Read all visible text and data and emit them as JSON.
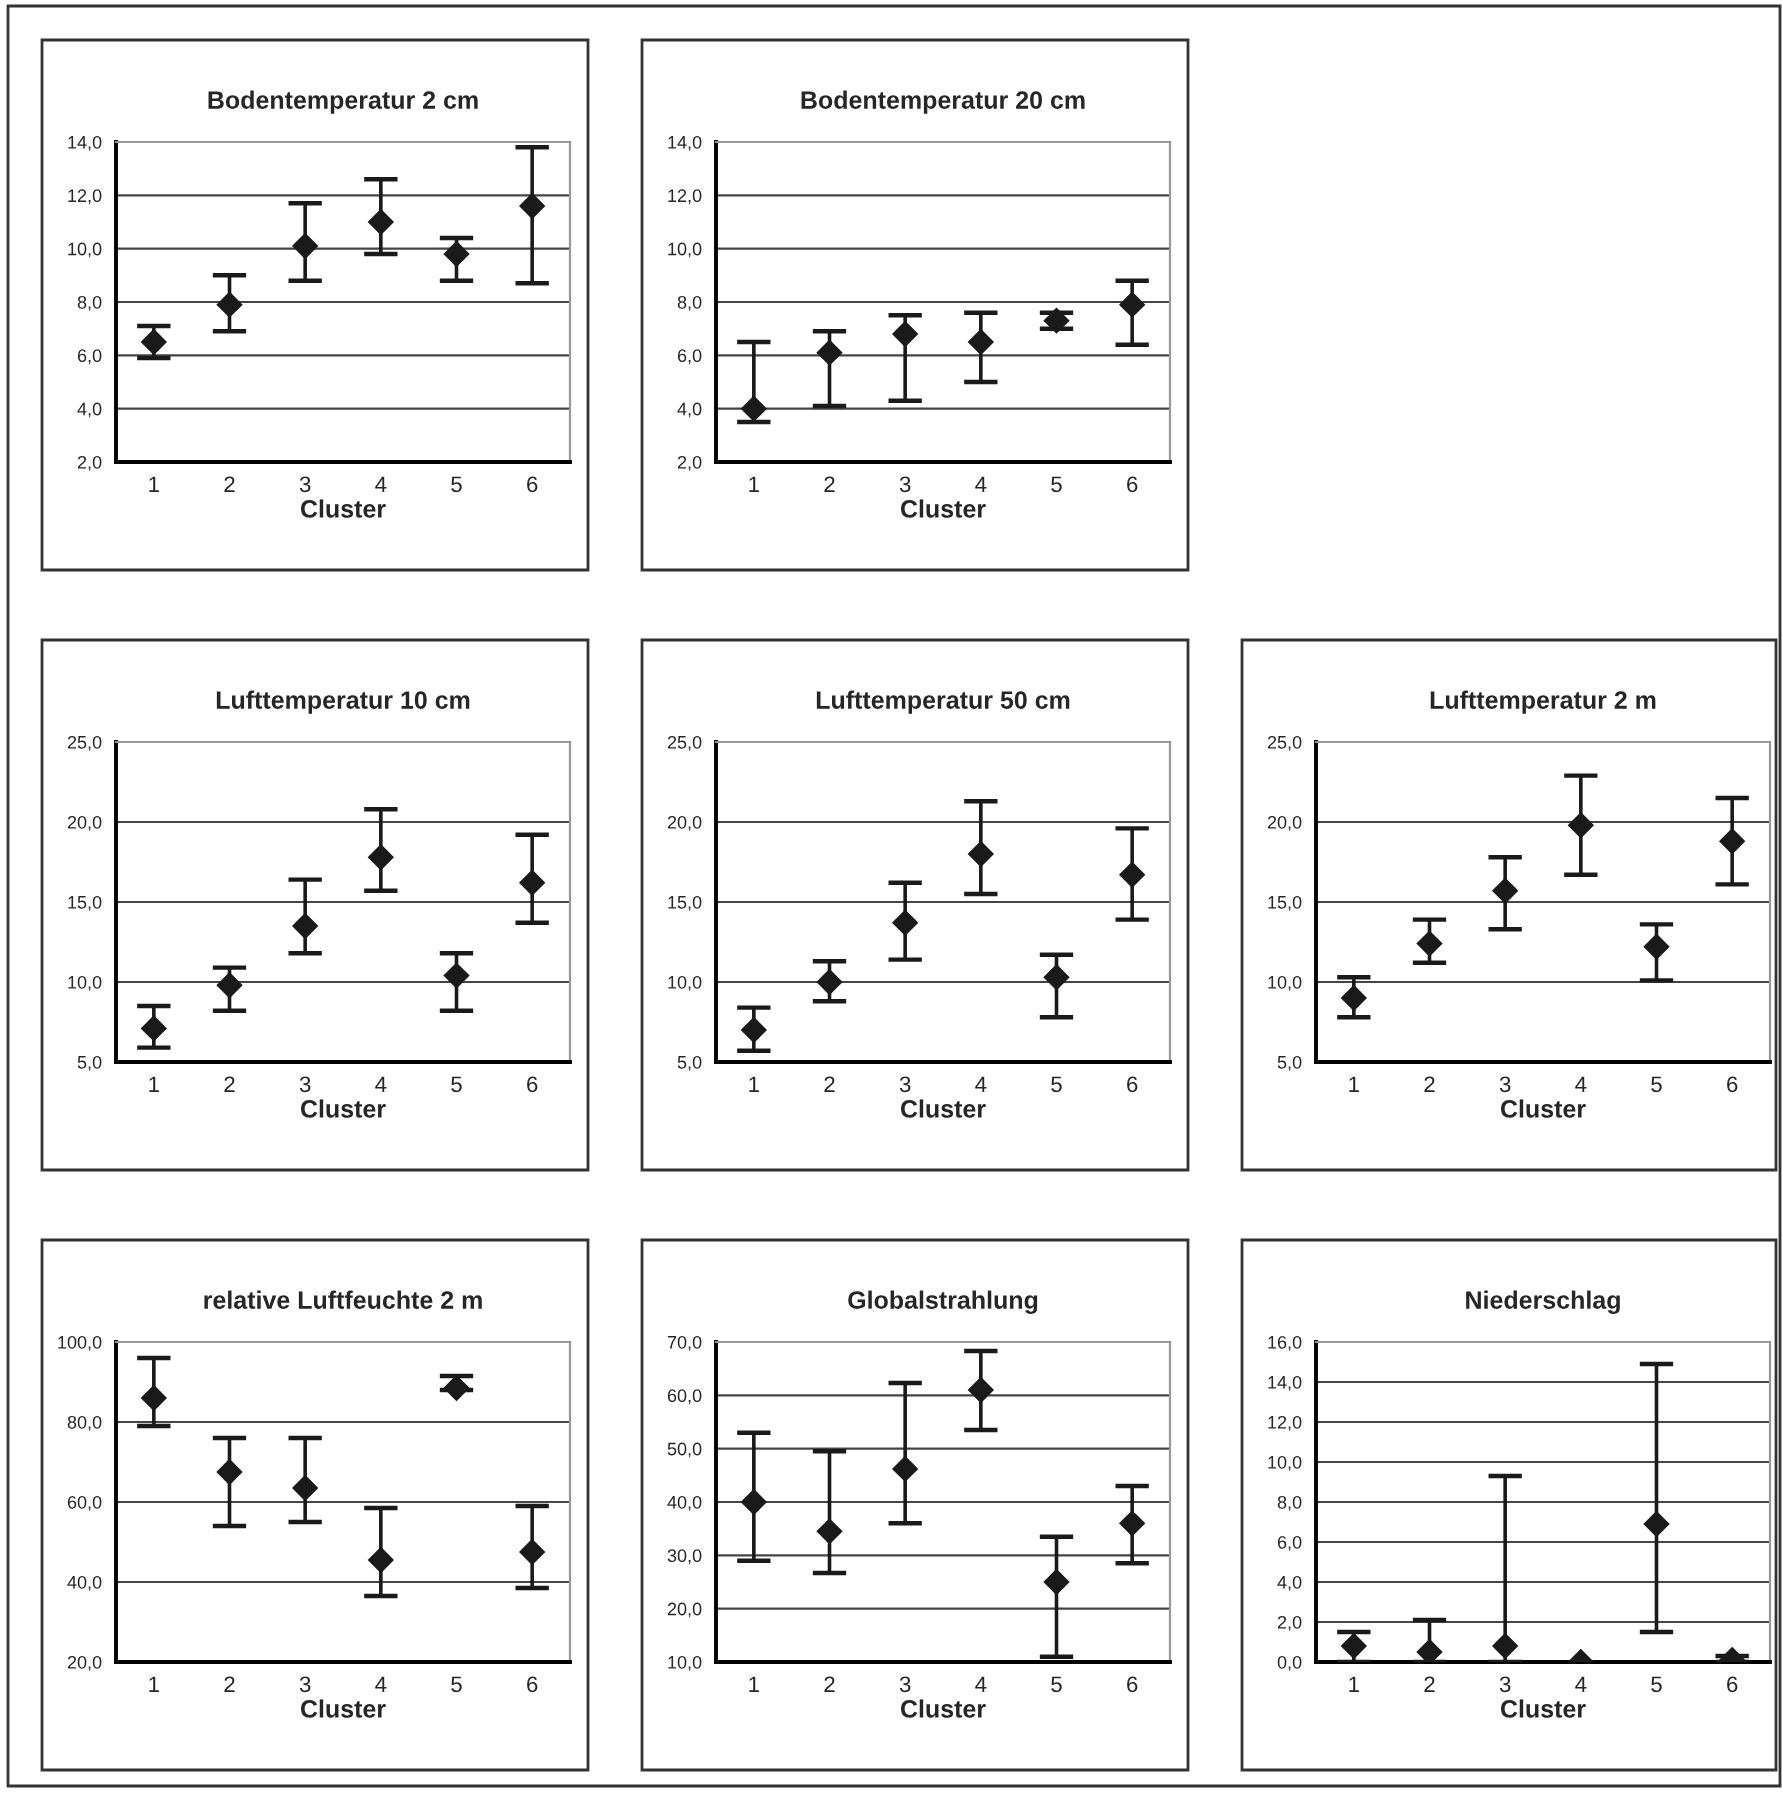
{
  "chart_data": [
    {
      "type": "scatter",
      "title": "Bodentemperatur 2 cm",
      "xlabel": "Cluster",
      "categories": [
        "1",
        "2",
        "3",
        "4",
        "5",
        "6"
      ],
      "color": "#1a1a1a",
      "marker": "diamond",
      "grid": "y",
      "values": [
        6.5,
        7.9,
        10.1,
        11.0,
        9.8,
        11.6
      ],
      "errors": [
        [
          5.9,
          7.1
        ],
        [
          6.9,
          9.0
        ],
        [
          8.8,
          11.7
        ],
        [
          9.8,
          12.6
        ],
        [
          8.8,
          10.4
        ],
        [
          8.7,
          13.8
        ]
      ],
      "ylim": [
        2,
        14
      ],
      "yticks": [
        {
          "value": 2,
          "label": "2,0"
        },
        {
          "value": 4,
          "label": "4,0"
        },
        {
          "value": 6,
          "label": "6,0"
        },
        {
          "value": 8,
          "label": "8,0"
        },
        {
          "value": 10,
          "label": "10,0"
        },
        {
          "value": 12,
          "label": "12,0"
        },
        {
          "value": 14,
          "label": "14,0"
        }
      ]
    },
    {
      "type": "scatter",
      "title": "Bodentemperatur 20 cm",
      "xlabel": "Cluster",
      "categories": [
        "1",
        "2",
        "3",
        "4",
        "5",
        "6"
      ],
      "color": "#1a1a1a",
      "marker": "diamond",
      "grid": "y",
      "values": [
        4.0,
        6.1,
        6.8,
        6.5,
        7.3,
        7.9
      ],
      "errors": [
        [
          3.5,
          6.5
        ],
        [
          4.1,
          6.9
        ],
        [
          4.3,
          7.5
        ],
        [
          5.0,
          7.6
        ],
        [
          7.0,
          7.6
        ],
        [
          6.4,
          8.8
        ]
      ],
      "ylim": [
        2,
        14
      ],
      "yticks": [
        {
          "value": 2,
          "label": "2,0"
        },
        {
          "value": 4,
          "label": "4,0"
        },
        {
          "value": 6,
          "label": "6,0"
        },
        {
          "value": 8,
          "label": "8,0"
        },
        {
          "value": 10,
          "label": "10,0"
        },
        {
          "value": 12,
          "label": "12,0"
        },
        {
          "value": 14,
          "label": "14,0"
        }
      ]
    },
    {
      "type": "scatter",
      "title": "Lufttemperatur 10 cm",
      "xlabel": "Cluster",
      "categories": [
        "1",
        "2",
        "3",
        "4",
        "5",
        "6"
      ],
      "color": "#1a1a1a",
      "marker": "diamond",
      "grid": "y",
      "values": [
        7.1,
        9.8,
        13.5,
        17.8,
        10.4,
        16.2
      ],
      "errors": [
        [
          5.9,
          8.5
        ],
        [
          8.2,
          10.9
        ],
        [
          11.8,
          16.4
        ],
        [
          15.7,
          20.8
        ],
        [
          8.2,
          11.8
        ],
        [
          13.7,
          19.2
        ]
      ],
      "ylim": [
        5,
        25
      ],
      "yticks": [
        {
          "value": 5,
          "label": "5,0"
        },
        {
          "value": 10,
          "label": "10,0"
        },
        {
          "value": 15,
          "label": "15,0"
        },
        {
          "value": 20,
          "label": "20,0"
        },
        {
          "value": 25,
          "label": "25,0"
        }
      ]
    },
    {
      "type": "scatter",
      "title": "Lufttemperatur 50 cm",
      "xlabel": "Cluster",
      "categories": [
        "1",
        "2",
        "3",
        "4",
        "5",
        "6"
      ],
      "color": "#1a1a1a",
      "marker": "diamond",
      "grid": "y",
      "values": [
        7.0,
        10.0,
        13.7,
        18.0,
        10.3,
        16.7
      ],
      "errors": [
        [
          5.7,
          8.4
        ],
        [
          8.8,
          11.3
        ],
        [
          11.4,
          16.2
        ],
        [
          15.5,
          21.3
        ],
        [
          7.8,
          11.7
        ],
        [
          13.9,
          19.6
        ]
      ],
      "ylim": [
        5,
        25
      ],
      "yticks": [
        {
          "value": 5,
          "label": "5,0"
        },
        {
          "value": 10,
          "label": "10,0"
        },
        {
          "value": 15,
          "label": "15,0"
        },
        {
          "value": 20,
          "label": "20,0"
        },
        {
          "value": 25,
          "label": "25,0"
        }
      ]
    },
    {
      "type": "scatter",
      "title": "Lufttemperatur 2 m",
      "xlabel": "Cluster",
      "categories": [
        "1",
        "2",
        "3",
        "4",
        "5",
        "6"
      ],
      "color": "#1a1a1a",
      "marker": "diamond",
      "grid": "y",
      "values": [
        9.0,
        12.4,
        15.7,
        19.8,
        12.2,
        18.8
      ],
      "errors": [
        [
          7.8,
          10.3
        ],
        [
          11.2,
          13.9
        ],
        [
          13.3,
          17.8
        ],
        [
          16.7,
          22.9
        ],
        [
          10.1,
          13.6
        ],
        [
          16.1,
          21.5
        ]
      ],
      "ylim": [
        5,
        25
      ],
      "yticks": [
        {
          "value": 5,
          "label": "5,0"
        },
        {
          "value": 10,
          "label": "10,0"
        },
        {
          "value": 15,
          "label": "15,0"
        },
        {
          "value": 20,
          "label": "20,0"
        },
        {
          "value": 25,
          "label": "25,0"
        }
      ]
    },
    {
      "type": "scatter",
      "title": "relative Luftfeuchte 2 m",
      "xlabel": "Cluster",
      "categories": [
        "1",
        "2",
        "3",
        "4",
        "5",
        "6"
      ],
      "color": "#1a1a1a",
      "marker": "diamond",
      "grid": "y",
      "values": [
        86,
        67.5,
        63.5,
        45.5,
        88.5,
        47.5
      ],
      "errors": [
        [
          79,
          96
        ],
        [
          54,
          76
        ],
        [
          55,
          76
        ],
        [
          36.5,
          58.5
        ],
        [
          88,
          91.5
        ],
        [
          38.5,
          59
        ]
      ],
      "ylim": [
        20,
        100
      ],
      "yticks": [
        {
          "value": 20,
          "label": "20,0"
        },
        {
          "value": 40,
          "label": "40,0"
        },
        {
          "value": 60,
          "label": "60,0"
        },
        {
          "value": 80,
          "label": "80,0"
        },
        {
          "value": 100,
          "label": "100,0"
        }
      ]
    },
    {
      "type": "scatter",
      "title": "Globalstrahlung",
      "xlabel": "Cluster",
      "categories": [
        "1",
        "2",
        "3",
        "4",
        "5",
        "6"
      ],
      "color": "#1a1a1a",
      "marker": "diamond",
      "grid": "y",
      "values": [
        40,
        34.5,
        46.2,
        61,
        25,
        36
      ],
      "errors": [
        [
          29,
          53
        ],
        [
          26.7,
          49.5
        ],
        [
          36,
          62.3
        ],
        [
          53.5,
          68.3
        ],
        [
          11,
          33.5
        ],
        [
          28.5,
          43
        ]
      ],
      "ylim": [
        10,
        70
      ],
      "yticks": [
        {
          "value": 10,
          "label": "10,0"
        },
        {
          "value": 20,
          "label": "20,0"
        },
        {
          "value": 30,
          "label": "30,0"
        },
        {
          "value": 40,
          "label": "40,0"
        },
        {
          "value": 50,
          "label": "50,0"
        },
        {
          "value": 60,
          "label": "60,0"
        },
        {
          "value": 70,
          "label": "70,0"
        }
      ]
    },
    {
      "type": "scatter",
      "title": "Niederschlag",
      "xlabel": "Cluster",
      "categories": [
        "1",
        "2",
        "3",
        "4",
        "5",
        "6"
      ],
      "color": "#1a1a1a",
      "marker": "diamond",
      "grid": "y",
      "values": [
        0.8,
        0.5,
        0.8,
        0,
        6.9,
        0.1
      ],
      "errors": [
        [
          0,
          1.5
        ],
        [
          0,
          2.1
        ],
        [
          0,
          9.3
        ],
        null,
        [
          1.5,
          14.9
        ],
        [
          0,
          0.3
        ]
      ],
      "ylim": [
        0,
        16
      ],
      "yticks": [
        {
          "value": 0,
          "label": "0,0"
        },
        {
          "value": 2,
          "label": "2,0"
        },
        {
          "value": 4,
          "label": "4,0"
        },
        {
          "value": 6,
          "label": "6,0"
        },
        {
          "value": 8,
          "label": "8,0"
        },
        {
          "value": 10,
          "label": "10,0"
        },
        {
          "value": 12,
          "label": "12,0"
        },
        {
          "value": 14,
          "label": "14,0"
        },
        {
          "value": 16,
          "label": "16,0"
        }
      ]
    }
  ]
}
